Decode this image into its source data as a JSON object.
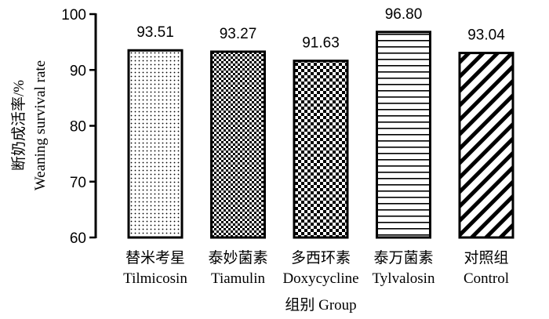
{
  "chart_data": {
    "type": "bar",
    "ylabel_cn": "断奶成活率/%",
    "ylabel_en": "Weaning survival rate",
    "xlabel": "组别 Group",
    "ylim": [
      60,
      100
    ],
    "yticks": [
      60,
      70,
      80,
      90,
      100
    ],
    "categories": [
      {
        "cn": "替米考星",
        "en": "Tilmicosin"
      },
      {
        "cn": "泰妙菌素",
        "en": "Tiamulin"
      },
      {
        "cn": "多西环素",
        "en": "Doxycycline"
      },
      {
        "cn": "泰万菌素",
        "en": "Tylvalosin"
      },
      {
        "cn": "对照组",
        "en": "Control"
      }
    ],
    "values": [
      93.51,
      93.27,
      91.63,
      96.8,
      93.04
    ],
    "value_labels": [
      "93.51",
      "93.27",
      "91.63",
      "96.80",
      "93.04"
    ],
    "patterns": [
      "dots",
      "checker-fine",
      "checker-coarse",
      "horizontal-lines",
      "diagonal-lines"
    ],
    "colors": {
      "fill": "#ffffff",
      "ink": "#000000"
    }
  }
}
